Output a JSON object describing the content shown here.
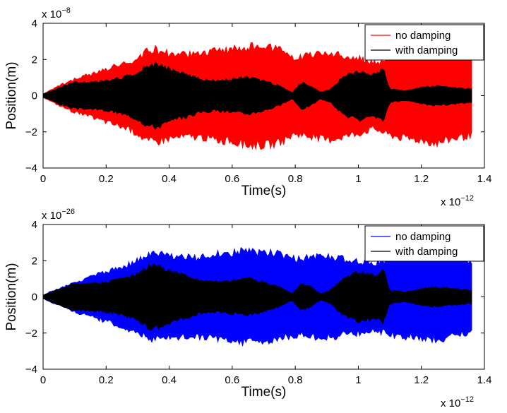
{
  "chart_data": [
    {
      "type": "area",
      "xlabel": "Time(s)",
      "ylabel": "Position(m)",
      "x_multiplier_label": "x 10",
      "x_multiplier_exp": "−12",
      "y_multiplier_label": "x 10",
      "y_multiplier_exp": "−8",
      "xlim": [
        0,
        1.4
      ],
      "ylim": [
        -4,
        4
      ],
      "xticks": [
        0,
        0.2,
        0.4,
        0.6,
        0.8,
        1,
        1.2,
        1.4
      ],
      "xtick_labels": [
        "0",
        "0.2",
        "0.4",
        "0.6",
        "0.8",
        "1",
        "1.2",
        "1.4"
      ],
      "yticks": [
        -4,
        -2,
        0,
        2,
        4
      ],
      "ytick_labels": [
        "−4",
        "−2",
        "0",
        "2",
        "4"
      ],
      "legend_position": "top-right",
      "series": [
        {
          "name": "no damping",
          "color": "#ff0000",
          "x": [
            0,
            0.02,
            0.05,
            0.1,
            0.15,
            0.2,
            0.25,
            0.3,
            0.33,
            0.36,
            0.4,
            0.45,
            0.5,
            0.55,
            0.6,
            0.65,
            0.7,
            0.75,
            0.8,
            0.85,
            0.9,
            0.95,
            1.0,
            1.05,
            1.1,
            1.15,
            1.2,
            1.25,
            1.3,
            1.36
          ],
          "env": [
            0.1,
            0.3,
            0.6,
            1.0,
            1.3,
            1.6,
            1.9,
            2.3,
            2.8,
            2.8,
            2.6,
            2.5,
            2.5,
            2.7,
            2.8,
            3.0,
            3.0,
            2.9,
            2.3,
            2.5,
            2.7,
            2.5,
            2.3,
            2.0,
            2.4,
            2.6,
            2.7,
            2.9,
            2.6,
            2.4
          ]
        },
        {
          "name": "with damping",
          "color": "#000000",
          "x": [
            0,
            0.02,
            0.05,
            0.1,
            0.15,
            0.2,
            0.25,
            0.3,
            0.33,
            0.36,
            0.4,
            0.45,
            0.5,
            0.55,
            0.6,
            0.65,
            0.7,
            0.75,
            0.79,
            0.82,
            0.85,
            0.88,
            0.91,
            0.95,
            1.0,
            1.05,
            1.08,
            1.1,
            1.15,
            1.2,
            1.25,
            1.3,
            1.36
          ],
          "env": [
            0.1,
            0.25,
            0.5,
            0.8,
            0.8,
            0.9,
            1.1,
            1.4,
            1.8,
            1.9,
            1.6,
            1.3,
            1.0,
            0.9,
            1.0,
            1.1,
            0.9,
            0.6,
            0.2,
            0.8,
            0.6,
            0.2,
            0.4,
            1.1,
            1.5,
            1.3,
            1.6,
            0.4,
            0.3,
            0.5,
            0.6,
            0.5,
            0.4
          ]
        }
      ]
    },
    {
      "type": "area",
      "xlabel": "Time(s)",
      "ylabel": "Position(m)",
      "x_multiplier_label": "x 10",
      "x_multiplier_exp": "−12",
      "y_multiplier_label": "x 10",
      "y_multiplier_exp": "−26",
      "xlim": [
        0,
        1.4
      ],
      "ylim": [
        -4,
        4
      ],
      "xticks": [
        0,
        0.2,
        0.4,
        0.6,
        0.8,
        1,
        1.2,
        1.4
      ],
      "xtick_labels": [
        "0",
        "0.2",
        "0.4",
        "0.6",
        "0.8",
        "1",
        "1.2",
        "1.4"
      ],
      "yticks": [
        -4,
        -2,
        0,
        2,
        4
      ],
      "ytick_labels": [
        "−4",
        "−2",
        "0",
        "2",
        "4"
      ],
      "legend_position": "top-right",
      "series": [
        {
          "name": "no damping",
          "color": "#0000ff",
          "x": [
            0,
            0.02,
            0.05,
            0.1,
            0.15,
            0.2,
            0.25,
            0.3,
            0.33,
            0.36,
            0.4,
            0.45,
            0.5,
            0.55,
            0.6,
            0.65,
            0.7,
            0.75,
            0.8,
            0.85,
            0.9,
            0.95,
            1.0,
            1.05,
            1.1,
            1.15,
            1.2,
            1.25,
            1.3,
            1.36
          ],
          "env": [
            0.1,
            0.3,
            0.5,
            0.9,
            1.2,
            1.5,
            1.8,
            2.2,
            2.5,
            2.6,
            2.5,
            2.4,
            2.4,
            2.6,
            2.7,
            2.8,
            2.7,
            2.6,
            2.3,
            2.4,
            2.5,
            2.3,
            2.2,
            2.0,
            2.3,
            2.4,
            2.5,
            2.7,
            2.4,
            2.2
          ]
        },
        {
          "name": "with damping",
          "color": "#000000",
          "x": [
            0,
            0.02,
            0.05,
            0.1,
            0.15,
            0.2,
            0.25,
            0.3,
            0.33,
            0.36,
            0.4,
            0.45,
            0.5,
            0.55,
            0.6,
            0.65,
            0.7,
            0.75,
            0.79,
            0.82,
            0.85,
            0.88,
            0.91,
            0.95,
            1.0,
            1.05,
            1.08,
            1.1,
            1.15,
            1.2,
            1.25,
            1.3,
            1.36
          ],
          "env": [
            0.1,
            0.25,
            0.5,
            0.8,
            0.8,
            0.9,
            1.1,
            1.4,
            1.8,
            1.9,
            1.6,
            1.3,
            1.0,
            0.9,
            1.0,
            1.1,
            0.9,
            0.6,
            0.2,
            0.8,
            0.6,
            0.2,
            0.4,
            1.1,
            1.5,
            1.3,
            1.6,
            0.4,
            0.3,
            0.5,
            0.6,
            0.5,
            0.4
          ]
        }
      ]
    }
  ]
}
